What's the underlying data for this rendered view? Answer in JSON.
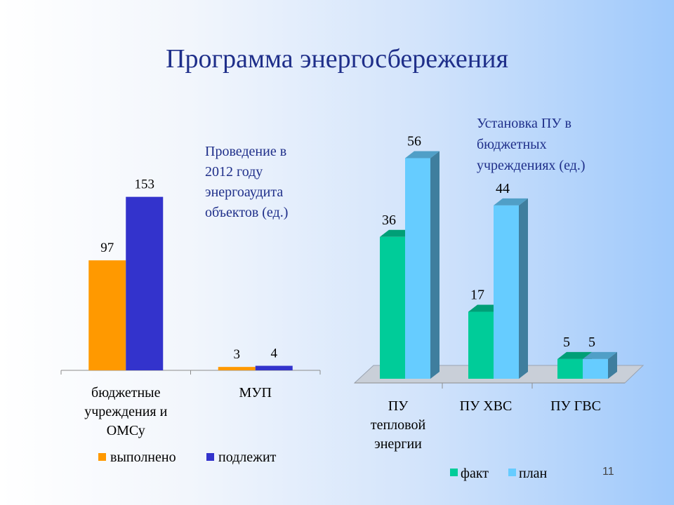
{
  "slide": {
    "title": "Программа энергосбережения",
    "number": "11"
  },
  "colors": {
    "orange": "#ff9900",
    "blue": "#3333cc",
    "green": "#00cc99",
    "light_blue": "#66ccff",
    "title": "#1f2f8a"
  },
  "chart_data": [
    {
      "type": "bar",
      "title": "Проведение в 2012 году энергоаудита объектов (ед.)",
      "title_lines": [
        "Проведение в",
        "2012 году",
        "энергоаудита",
        "объектов (ед.)"
      ],
      "categories": [
        "бюджетные учреждения и ОМСу",
        "МУП"
      ],
      "category_lines": [
        [
          "бюджетные",
          "учреждения и",
          "ОМСу"
        ],
        [
          "МУП"
        ]
      ],
      "series": [
        {
          "name": "выполнено",
          "values": [
            97,
            3
          ],
          "color": "#ff9900"
        },
        {
          "name": "подлежит",
          "values": [
            153,
            4
          ],
          "color": "#3333cc"
        }
      ],
      "ylim": [
        0,
        180
      ],
      "grid": false,
      "legend": "bottom"
    },
    {
      "type": "bar",
      "style": "3d",
      "title": "Установка ПУ в бюджетных учреждениях (ед.)",
      "title_lines": [
        "Установка ПУ  в",
        "бюджетных",
        "учреждениях (ед.)"
      ],
      "categories": [
        "ПУ тепловой энергии",
        "ПУ ХВС",
        "ПУ ГВС"
      ],
      "category_lines": [
        [
          "ПУ",
          "тепловой",
          "энергии"
        ],
        [
          "ПУ ХВС"
        ],
        [
          "ПУ ГВС"
        ]
      ],
      "series": [
        {
          "name": "факт",
          "values": [
            36,
            17,
            5
          ],
          "color": "#00cc99"
        },
        {
          "name": "план",
          "values": [
            56,
            44,
            5
          ],
          "color": "#66ccff"
        }
      ],
      "ylim": [
        0,
        60
      ],
      "grid": false,
      "legend": "bottom"
    }
  ]
}
